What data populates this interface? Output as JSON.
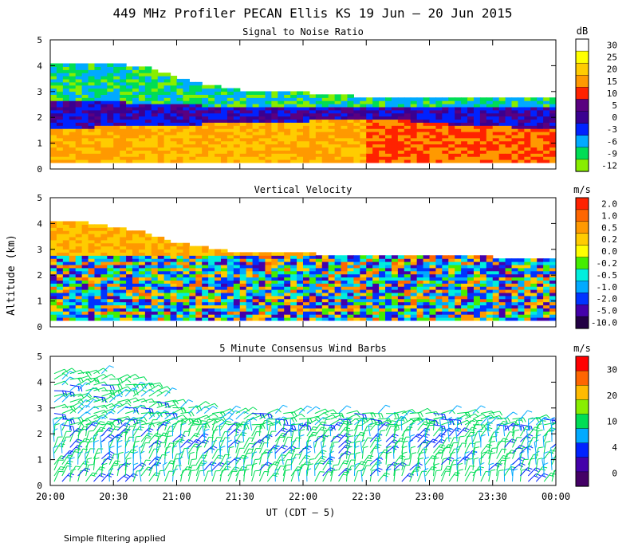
{
  "figure": {
    "title": "449 MHz Profiler PECAN Ellis KS 19 Jun – 20 Jun 2015",
    "ylabel": "Altitude (km)",
    "xlabel": "UT  (CDT – 5)",
    "footnote": "Simple filtering applied"
  },
  "chart_data": [
    {
      "type": "heatmap",
      "title": "Signal to Noise Ratio",
      "unit": "dB",
      "ylim": [
        0,
        5
      ],
      "yticks": [
        "0",
        "1",
        "2",
        "3",
        "4",
        "5"
      ],
      "xticks": [
        "20:00",
        "20:30",
        "21:00",
        "21:30",
        "22:00",
        "22:30",
        "23:00",
        "23:30",
        "00:00"
      ],
      "colorbar_labels": [
        "30",
        "25",
        "20",
        "15",
        "10",
        "5",
        "0",
        "-3",
        "-6",
        "-9",
        "-12"
      ],
      "colorbar_colors": [
        "#ffffff",
        "#ffff00",
        "#ffcc00",
        "#ff9900",
        "#ff2200",
        "#5a0080",
        "#3a0090",
        "#0022ff",
        "#00aaff",
        "#00dd55",
        "#88ee00"
      ],
      "profile": {
        "upper_boundary_km": [
          4.0,
          4.0,
          4.0,
          3.9,
          3.5,
          3.2,
          3.0,
          3.0,
          2.9,
          2.8,
          2.75,
          2.7,
          2.7,
          2.7,
          2.7,
          2.65,
          2.65
        ],
        "low_snr_layer_bottom_km": [
          2.6,
          2.6,
          2.55,
          2.5,
          2.45,
          2.4,
          2.4,
          2.4,
          2.4,
          2.4,
          2.4,
          2.4,
          2.4,
          2.4,
          2.4,
          2.4,
          2.4
        ],
        "boundary_layer_top_km": [
          1.55,
          1.55,
          1.6,
          1.6,
          1.65,
          1.7,
          1.75,
          1.8,
          1.8,
          1.85,
          1.9,
          1.85,
          1.75,
          1.65,
          1.6,
          1.55,
          1.5
        ],
        "lowest_gate_km": 0.25
      }
    },
    {
      "type": "heatmap",
      "title": "Vertical Velocity",
      "unit": "m/s",
      "ylim": [
        0,
        5
      ],
      "yticks": [
        "0",
        "1",
        "2",
        "3",
        "4",
        "5"
      ],
      "xticks": [
        "20:00",
        "20:30",
        "21:00",
        "21:30",
        "22:00",
        "22:30",
        "23:00",
        "23:30",
        "00:00"
      ],
      "colorbar_labels": [
        "2.0",
        "1.0",
        "0.5",
        "0.2",
        "0.0",
        "-0.2",
        "-0.5",
        "-1.0",
        "-2.0",
        "-5.0",
        "-10.0"
      ],
      "colorbar_colors": [
        "#ff2200",
        "#ff6600",
        "#ff9900",
        "#ffcc00",
        "#ffff00",
        "#44ee00",
        "#00eedd",
        "#00aaff",
        "#0033ff",
        "#4400aa",
        "#220044"
      ],
      "profile": {
        "echo_top_km": [
          4.0,
          4.0,
          3.8,
          3.6,
          3.2,
          3.0,
          2.8,
          2.8,
          2.8,
          2.7,
          2.7,
          2.7,
          2.7,
          2.65,
          2.65,
          2.6,
          2.6
        ],
        "lowest_gate_km": 0.25
      }
    },
    {
      "type": "wind_barbs",
      "title": "5 Minute Consensus Wind Barbs",
      "unit": "m/s",
      "ylim": [
        0,
        5
      ],
      "yticks": [
        "0",
        "1",
        "2",
        "3",
        "4",
        "5"
      ],
      "xticks": [
        "20:00",
        "20:30",
        "21:00",
        "21:30",
        "22:00",
        "22:30",
        "23:00",
        "23:30",
        "00:00"
      ],
      "colorbar_labels": [
        "30",
        "20",
        "10",
        "4",
        "0"
      ],
      "colorbar_colors": [
        "#ff0000",
        "#ff6600",
        "#ffbb00",
        "#88ee00",
        "#00dd55",
        "#00aaff",
        "#0022ff",
        "#4400aa",
        "#440066"
      ],
      "profile": {
        "max_height_km": [
          4.5,
          4.5,
          4.3,
          4.0,
          3.2,
          3.0,
          2.9,
          2.9,
          2.9,
          2.9,
          3.0,
          3.0,
          3.0,
          2.9,
          2.8,
          2.7,
          2.7
        ],
        "typical_speed_ms": 10
      }
    }
  ]
}
